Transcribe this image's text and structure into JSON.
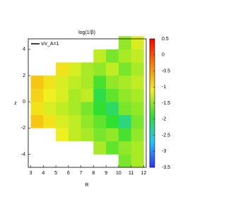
{
  "chart_data": {
    "type": "heatmap",
    "title": "log(1/β)",
    "x_label": "R",
    "y_label": "z",
    "x": [
      3.5,
      4.5,
      5.5,
      6.5,
      7.5,
      8.5,
      9.5,
      10.5,
      11.5
    ],
    "y": [
      -4.5,
      -3.5,
      -2.5,
      -1.5,
      -0.5,
      0.5,
      1.5,
      2.5,
      3.5,
      4.5
    ],
    "values": [
      [
        null,
        null,
        null,
        null,
        null,
        null,
        null,
        -1.6,
        -1.4
      ],
      [
        null,
        null,
        null,
        null,
        null,
        -1.4,
        -1.7,
        -1.5,
        -1.4
      ],
      [
        null,
        null,
        -1.1,
        -1.3,
        -1.4,
        -1.6,
        -1.5,
        -1.8,
        -1.5
      ],
      [
        -0.8,
        -1.0,
        -1.2,
        -1.3,
        -1.5,
        -1.7,
        -1.9,
        -2.2,
        -1.6
      ],
      [
        -1.0,
        -1.2,
        -1.3,
        -1.4,
        -1.6,
        -1.9,
        -2.1,
        -1.6,
        -1.5
      ],
      [
        -0.9,
        -1.1,
        -1.2,
        -1.4,
        -1.3,
        -2.0,
        -1.7,
        -1.5,
        -1.4
      ],
      [
        -0.8,
        -1.0,
        -1.2,
        -1.3,
        -1.4,
        -1.8,
        -1.5,
        -1.4,
        -1.3
      ],
      [
        null,
        null,
        -1.0,
        -1.2,
        -1.4,
        -1.5,
        -1.3,
        -1.6,
        -1.4
      ],
      [
        null,
        null,
        null,
        null,
        null,
        -1.3,
        -1.6,
        -1.4,
        -1.3
      ],
      [
        null,
        null,
        null,
        null,
        null,
        null,
        null,
        -1.5,
        -1.2
      ]
    ],
    "xlim": [
      2.8,
      12.2
    ],
    "xticks": [
      3,
      4,
      5,
      6,
      7,
      8,
      9,
      10,
      11,
      12
    ],
    "ylim": [
      -5,
      4.8
    ],
    "yticks": [
      -4,
      -2,
      0,
      2,
      4
    ],
    "clim": [
      -3.5,
      0.5
    ],
    "cticks": [
      -3.5,
      -3,
      -2.5,
      -2,
      -1.5,
      -1,
      -0.5,
      0,
      0.5
    ],
    "colormap": [
      "#3030ff",
      "#20c8ff",
      "#30e030",
      "#f0f020",
      "#ff8000",
      "#ff0000"
    ],
    "legend": "v/v_A=1",
    "legend_color": "#000000"
  }
}
